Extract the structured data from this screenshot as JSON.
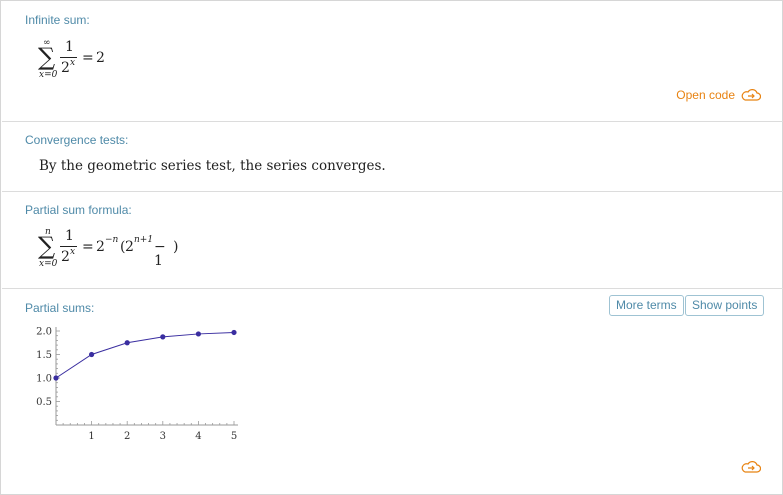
{
  "pods": {
    "infinite_sum": {
      "title": "Infinite sum:",
      "upper": "∞",
      "lower": "x=0",
      "numerator": "1",
      "base": "2",
      "exponent": "x",
      "equals": "=",
      "result": "2"
    },
    "open_code": "Open code",
    "convergence": {
      "title": "Convergence tests:",
      "text": "By the geometric series test, the series converges."
    },
    "partial_formula": {
      "title": "Partial sum formula:",
      "upper": "n",
      "lower": "x=0",
      "numerator": "1",
      "base": "2",
      "exponent": "x",
      "equals": "=",
      "rhs_base": "2",
      "rhs_exp": "−n",
      "paren_open": "(",
      "inner_base": "2",
      "inner_exp": "n+1",
      "minus_one": "− 1",
      "paren_close": ")"
    },
    "partial_sums": {
      "title": "Partial sums:",
      "more_terms": "More terms",
      "show_points": "Show points"
    }
  },
  "colors": {
    "accent": "#4f8aa8",
    "orange": "#e88312",
    "series": "#3a2ea0"
  },
  "icons": {
    "open_code": "cloud-arrow-icon",
    "bottom": "cloud-arrow-icon"
  },
  "chart_data": {
    "type": "line",
    "x": [
      0,
      1,
      2,
      3,
      4,
      5
    ],
    "y": [
      1,
      1.5,
      1.75,
      1.875,
      1.9375,
      1.96875
    ],
    "xticks": [
      "1",
      "2",
      "3",
      "4",
      "5"
    ],
    "yticks": [
      "0.5",
      "1.0",
      "1.5",
      "2.0"
    ],
    "xlim": [
      0,
      5
    ],
    "ylim": [
      0,
      2.0
    ],
    "markers": true,
    "grid": false
  }
}
